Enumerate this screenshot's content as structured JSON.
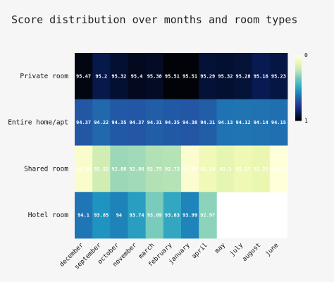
{
  "chart_data": {
    "type": "heatmap",
    "title": "Score distribution over months and room types",
    "rows": [
      "Private room",
      "Entire home/apt",
      "Shared room",
      "Hotel room"
    ],
    "columns": [
      "december",
      "september",
      "october",
      "november",
      "march",
      "february",
      "january",
      "april",
      "may",
      "july",
      "august",
      "june"
    ],
    "values": [
      [
        95.47,
        95.2,
        95.32,
        95.4,
        95.38,
        95.51,
        95.51,
        95.29,
        95.32,
        95.28,
        95.16,
        95.23
      ],
      [
        94.37,
        94.22,
        94.35,
        94.37,
        94.31,
        94.35,
        94.38,
        94.31,
        94.13,
        94.12,
        94.14,
        94.15
      ],
      [
        91.94,
        92.52,
        92.88,
        92.86,
        92.75,
        92.73,
        91.89,
        92.14,
        92.3,
        92.17,
        92.25,
        91.77
      ],
      [
        94.1,
        93.85,
        94.0,
        93.74,
        93.09,
        93.63,
        93.99,
        92.97,
        null,
        null,
        null,
        null
      ]
    ],
    "cell_labels": [
      [
        "95.47",
        "95.2",
        "95.32",
        "95.4",
        "95.38",
        "95.51",
        "95.51",
        "95.29",
        "95.32",
        "95.28",
        "95.16",
        "95.23"
      ],
      [
        "94.37",
        "94.22",
        "94.35",
        "94.37",
        "94.31",
        "94.35",
        "94.38",
        "94.31",
        "94.13",
        "94.12",
        "94.14",
        "94.15"
      ],
      [
        "91.94",
        "92.52",
        "92.88",
        "92.86",
        "92.75",
        "92.73",
        "91.89",
        "92.14",
        "92.3",
        "92.17",
        "92.25",
        "91.77"
      ],
      [
        "94.1",
        "93.85",
        "94",
        "93.74",
        "93.09",
        "93.63",
        "93.99",
        "92.97",
        "",
        "",
        "",
        ""
      ]
    ],
    "colorscale": [
      "#ffffd9",
      "#edf8b1",
      "#c7e9b4",
      "#7fcdbb",
      "#41b6c4",
      "#1d91c0",
      "#225ea8",
      "#253494",
      "#081d58",
      "#000000"
    ],
    "zrange": [
      91.8,
      95.55
    ],
    "colorbar": {
      "tick_labels": [
        "0",
        "1"
      ]
    },
    "grid": false
  }
}
